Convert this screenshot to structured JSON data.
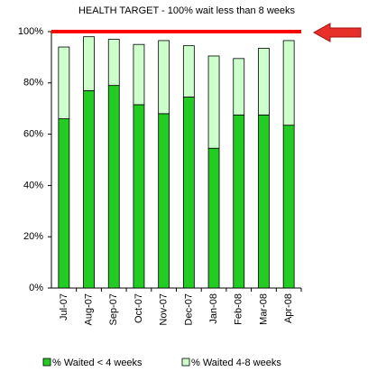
{
  "chart_data": {
    "type": "stacked_bar",
    "title": "HEALTH TARGET  -  100% wait less than 8 weeks",
    "categories": [
      "Jul-07",
      "Aug-07",
      "Sep-07",
      "Oct-07",
      "Nov-07",
      "Dec-07",
      "Jan-08",
      "Feb-08",
      "Mar-08",
      "Apr-08"
    ],
    "series": [
      {
        "name": "% Waited < 4 weeks",
        "color": "#22cc22",
        "values": [
          66,
          77,
          79,
          71.5,
          68,
          74.5,
          54.5,
          67.5,
          67.5,
          63.5
        ]
      },
      {
        "name": "% Waited 4-8 weeks",
        "color": "#ccffcc",
        "values": [
          28,
          21,
          18,
          23.5,
          28.5,
          20,
          36,
          22,
          26,
          33
        ]
      }
    ],
    "ylim": [
      0,
      100
    ],
    "yticks": [
      {
        "value": 0,
        "label": "0%"
      },
      {
        "value": 20,
        "label": "20%"
      },
      {
        "value": 40,
        "label": "40%"
      },
      {
        "value": 60,
        "label": "60%"
      },
      {
        "value": 80,
        "label": "80%"
      },
      {
        "value": 100,
        "label": "100%"
      }
    ],
    "target_line": {
      "value": 100,
      "color": "#ff0000"
    },
    "legend": "bottom"
  }
}
